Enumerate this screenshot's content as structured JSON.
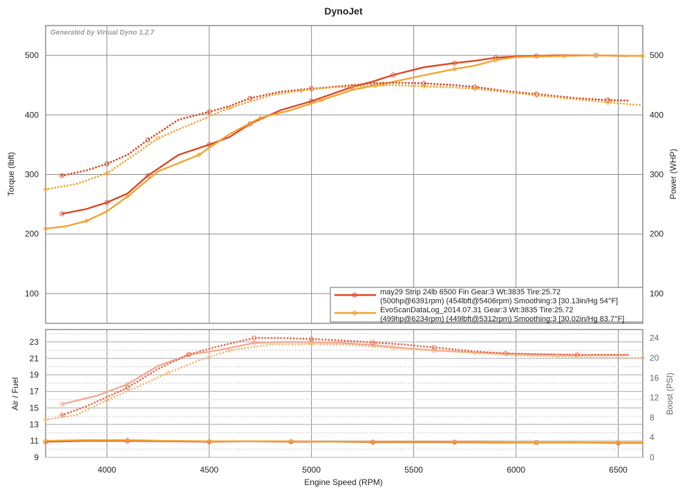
{
  "chart_data": {
    "type": "line",
    "title": "DynoJet",
    "generated_by": "Generated by Virtual Dyno 1.2.7",
    "xlabel": "Engine Speed (RPM)",
    "xlim": [
      3700,
      6620
    ],
    "x_ticks": [
      4000,
      4500,
      5000,
      5500,
      6000,
      6500
    ],
    "top_panel": {
      "ylabel_left": "Torque (lbft)",
      "ylabel_right": "Power (WHP)",
      "ylim": [
        50,
        550
      ],
      "y_ticks": [
        100,
        200,
        300,
        400,
        500
      ],
      "series": [
        {
          "id": "run1_power",
          "metric": "power",
          "run": 0,
          "style": "solid",
          "color": "#dd4420",
          "x": [
            3780,
            3900,
            4000,
            4100,
            4200,
            4350,
            4500,
            4600,
            4700,
            4850,
            5000,
            5100,
            5200,
            5300,
            5400,
            5550,
            5700,
            5800,
            5900,
            6000,
            6100,
            6200,
            6391,
            6550
          ],
          "y": [
            234,
            242,
            253,
            268,
            298,
            333,
            350,
            363,
            385,
            408,
            423,
            435,
            447,
            456,
            467,
            480,
            487,
            491,
            496,
            498,
            499,
            500,
            500,
            499
          ]
        },
        {
          "id": "run2_power",
          "metric": "power",
          "run": 1,
          "style": "solid",
          "color": "#f3a230",
          "x": [
            3700,
            3800,
            3900,
            4000,
            4100,
            4250,
            4450,
            4600,
            4750,
            4900,
            5050,
            5200,
            5350,
            5500,
            5700,
            5800,
            5900,
            6000,
            6234,
            6400,
            6620
          ],
          "y": [
            209,
            213,
            222,
            238,
            263,
            305,
            333,
            368,
            395,
            408,
            425,
            442,
            452,
            463,
            477,
            483,
            492,
            497,
            499,
            500,
            499
          ]
        },
        {
          "id": "run1_torque",
          "metric": "torque",
          "run": 0,
          "style": "dotted",
          "color": "#dd4420",
          "x": [
            3780,
            3900,
            4000,
            4100,
            4200,
            4350,
            4500,
            4600,
            4700,
            4850,
            5000,
            5100,
            5300,
            5406,
            5550,
            5700,
            5800,
            5950,
            6100,
            6300,
            6450,
            6550
          ],
          "y": [
            298,
            307,
            318,
            333,
            358,
            392,
            405,
            415,
            428,
            439,
            444,
            447,
            453,
            454,
            453,
            450,
            447,
            440,
            435,
            428,
            425,
            424
          ]
        },
        {
          "id": "run2_torque",
          "metric": "torque",
          "run": 1,
          "style": "dotted",
          "color": "#f3a230",
          "x": [
            3700,
            3850,
            4000,
            4100,
            4250,
            4450,
            4600,
            4800,
            4950,
            5100,
            5312,
            5400,
            5550,
            5700,
            5800,
            5950,
            6100,
            6300,
            6450,
            6620
          ],
          "y": [
            275,
            284,
            302,
            325,
            361,
            390,
            412,
            433,
            441,
            446,
            449,
            450,
            448,
            446,
            444,
            438,
            433,
            426,
            421,
            416
          ]
        }
      ],
      "legend": {
        "position": "bottom-right",
        "entries": [
          {
            "line1": "may29 Strip 24lb 6500 Fin Gear:3 Wt:3835 Tire:25.72",
            "line2": "(500hp@6391rpm) (454lbft@5406rpm) Smoothing:3 [30.13in/Hg 54°F]",
            "color": "#dd4420",
            "marker": "circle"
          },
          {
            "line1": "EvoScanDataLog_2014.07.31 Gear:3 Wt:3835 Tire:25.72",
            "line2": "(499hp@6234rpm) (449lbft@5312rpm) Smoothing:3 [30.02in/Hg 83.7°F]",
            "color": "#f3a230",
            "marker": "diamond"
          }
        ]
      }
    },
    "bottom_panel": {
      "ylabel_left": "Air / Fuel",
      "ylabel_right": "Boost (PSI)",
      "ylim_left": [
        9,
        24.5
      ],
      "y_ticks_left": [
        9,
        11,
        13,
        15,
        17,
        19,
        21,
        23
      ],
      "ylim_right": [
        0,
        25.7
      ],
      "y_ticks_right": [
        0,
        4,
        8,
        12,
        16,
        20,
        24
      ],
      "series": [
        {
          "id": "run1_afr",
          "axis": "left",
          "style": "solid",
          "color": "#dd4420",
          "x": [
            3700,
            3900,
            4100,
            4300,
            4500,
            4700,
            4900,
            5100,
            5300,
            5500,
            5700,
            5900,
            6100,
            6300,
            6500,
            6620
          ],
          "y": [
            10.9,
            11.0,
            11.0,
            10.95,
            10.9,
            10.95,
            10.9,
            10.9,
            10.85,
            10.85,
            10.85,
            10.8,
            10.8,
            10.8,
            10.75,
            10.75
          ]
        },
        {
          "id": "run2_afr",
          "axis": "left",
          "style": "solid",
          "color": "#f3a230",
          "x": [
            3700,
            3900,
            4100,
            4300,
            4500,
            4700,
            4900,
            5100,
            5300,
            5500,
            5700,
            5900,
            6100,
            6300,
            6500,
            6620
          ],
          "y": [
            11.0,
            11.1,
            11.1,
            11.0,
            10.95,
            10.95,
            10.95,
            10.9,
            10.9,
            10.9,
            10.9,
            10.85,
            10.8,
            10.8,
            10.8,
            10.8
          ]
        },
        {
          "id": "run1_boost",
          "axis": "right",
          "style": "solid",
          "color": "#f2a894",
          "x": [
            3780,
            3950,
            4100,
            4250,
            4400,
            4550,
            4720,
            4850,
            5000,
            5150,
            5300,
            5450,
            5600,
            5800,
            5950,
            6100,
            6300,
            6550
          ],
          "y": [
            10.7,
            12.4,
            14.7,
            18.4,
            20.6,
            21.6,
            23.0,
            23.2,
            23.2,
            23.0,
            22.6,
            22.0,
            21.5,
            21.1,
            20.9,
            20.8,
            20.6,
            20.6
          ]
        },
        {
          "id": "run1_boost_dotted",
          "axis": "right",
          "style": "dotted",
          "color": "#e86a4d",
          "x": [
            3780,
            3900,
            4100,
            4250,
            4400,
            4550,
            4720,
            4850,
            5000,
            5150,
            5300,
            5450,
            5600,
            5800,
            5950,
            6100,
            6300,
            6550
          ],
          "y": [
            8.5,
            10.3,
            14.0,
            17.8,
            20.7,
            22.4,
            24.0,
            24.0,
            23.8,
            23.5,
            23.1,
            22.7,
            22.1,
            21.3,
            20.9,
            20.7,
            20.6,
            20.6
          ]
        },
        {
          "id": "run2_boost_dotted",
          "axis": "right",
          "style": "dotted",
          "color": "#f5b97a",
          "x": [
            3700,
            3850,
            4000,
            4150,
            4300,
            4450,
            4600,
            4800,
            5000,
            5200,
            5400,
            5600,
            5800,
            6000,
            6200,
            6400,
            6620
          ],
          "y": [
            7.6,
            8.5,
            11.5,
            14.2,
            17.0,
            19.5,
            21.5,
            22.7,
            22.8,
            22.6,
            22.0,
            21.5,
            21.0,
            20.5,
            20.3,
            20.1,
            20.0
          ]
        }
      ]
    }
  }
}
